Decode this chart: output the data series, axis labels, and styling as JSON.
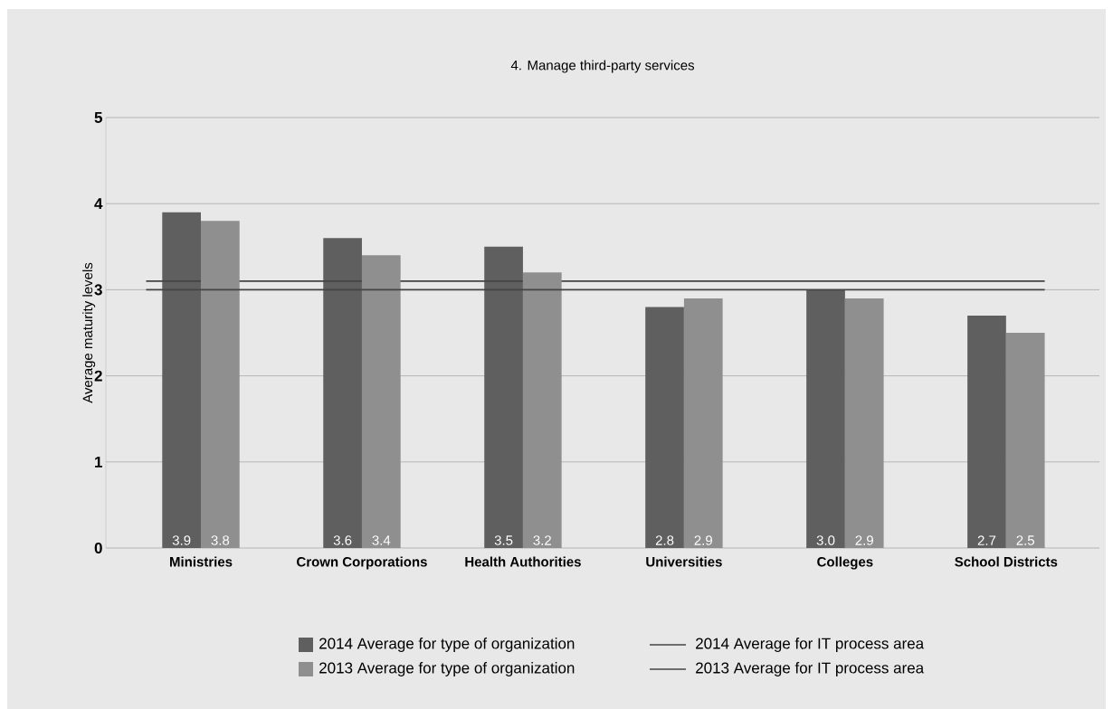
{
  "chart_data": {
    "type": "bar",
    "title": "4. Manage third-party services",
    "ylabel": "Average maturity levels",
    "categories": [
      "Ministries",
      "Crown Corporations",
      "Health Authorities",
      "Universities",
      "Colleges",
      "School Districts"
    ],
    "series": [
      {
        "name": "2014 Average for type of organization",
        "color": "#5f5f5f",
        "values": [
          3.9,
          3.6,
          3.5,
          2.8,
          3.0,
          2.7
        ],
        "value_labels": [
          "3.9",
          "3.6",
          "3.5",
          "2.8",
          "3.0",
          "2.7"
        ]
      },
      {
        "name": "2013 Average for type of organization",
        "color": "#8f8f8f",
        "values": [
          3.8,
          3.4,
          3.2,
          2.9,
          2.9,
          2.5
        ],
        "value_labels": [
          "3.8",
          "3.4",
          "3.2",
          "2.9",
          "2.9",
          "2.5"
        ]
      }
    ],
    "ref_lines": [
      {
        "axis": "y",
        "value": 3.1,
        "label": "2014 Average for IT process area",
        "color": "#444444"
      },
      {
        "axis": "y",
        "value": 3.0,
        "label": "2013 Average for IT process area",
        "color": "#444444"
      }
    ],
    "ylim": [
      0,
      5
    ],
    "yticks": [
      0,
      1,
      2,
      3,
      4,
      5
    ],
    "grid": "y",
    "legend": "bottom"
  }
}
